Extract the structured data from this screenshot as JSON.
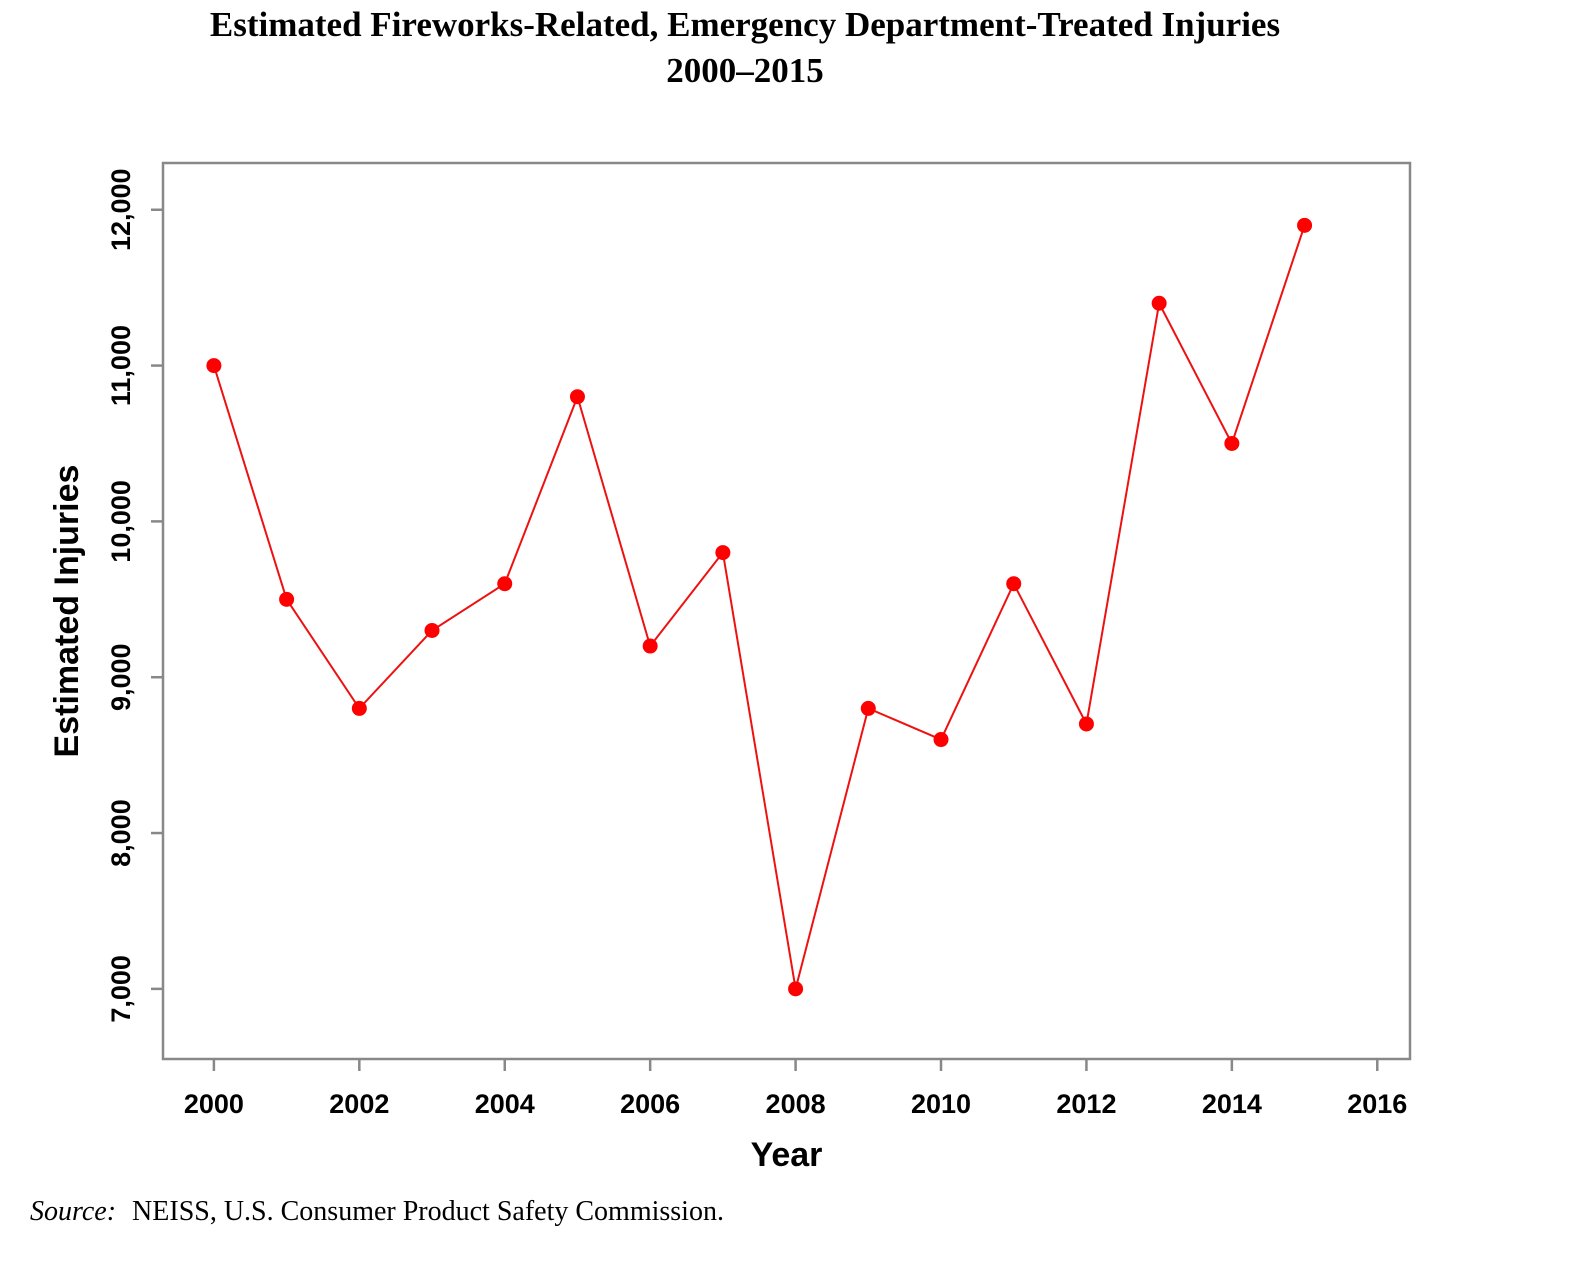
{
  "chart_data": {
    "type": "line",
    "title": "Estimated Fireworks-Related, Emergency Department-Treated Injuries",
    "subtitle": "2000–2015",
    "xlabel": "Year",
    "ylabel": "Estimated Injuries",
    "xlim": [
      1999.3,
      2016.45
    ],
    "ylim": [
      6550,
      12300
    ],
    "x_ticks": [
      2000,
      2002,
      2004,
      2006,
      2008,
      2010,
      2012,
      2014,
      2016
    ],
    "x_tick_labels": [
      "2000",
      "2002",
      "2004",
      "2006",
      "2008",
      "2010",
      "2012",
      "2014",
      "2016"
    ],
    "y_ticks": [
      7000,
      8000,
      9000,
      10000,
      11000,
      12000
    ],
    "y_tick_labels": [
      "7,000",
      "8,000",
      "9,000",
      "10,000",
      "11,000",
      "12,000"
    ],
    "grid": false,
    "colors": {
      "series": "#ee1111",
      "marker": "#ff0000",
      "frame": "#888888"
    },
    "x": [
      2000,
      2001,
      2002,
      2003,
      2004,
      2005,
      2006,
      2007,
      2008,
      2009,
      2010,
      2011,
      2012,
      2013,
      2014,
      2015
    ],
    "y": [
      11000,
      9500,
      8800,
      9300,
      9600,
      10800,
      9200,
      9800,
      7000,
      8800,
      8600,
      9600,
      8700,
      11400,
      10500,
      11900
    ]
  },
  "source": {
    "label": "Source:",
    "text": "NEISS, U.S. Consumer Product Safety Commission."
  }
}
